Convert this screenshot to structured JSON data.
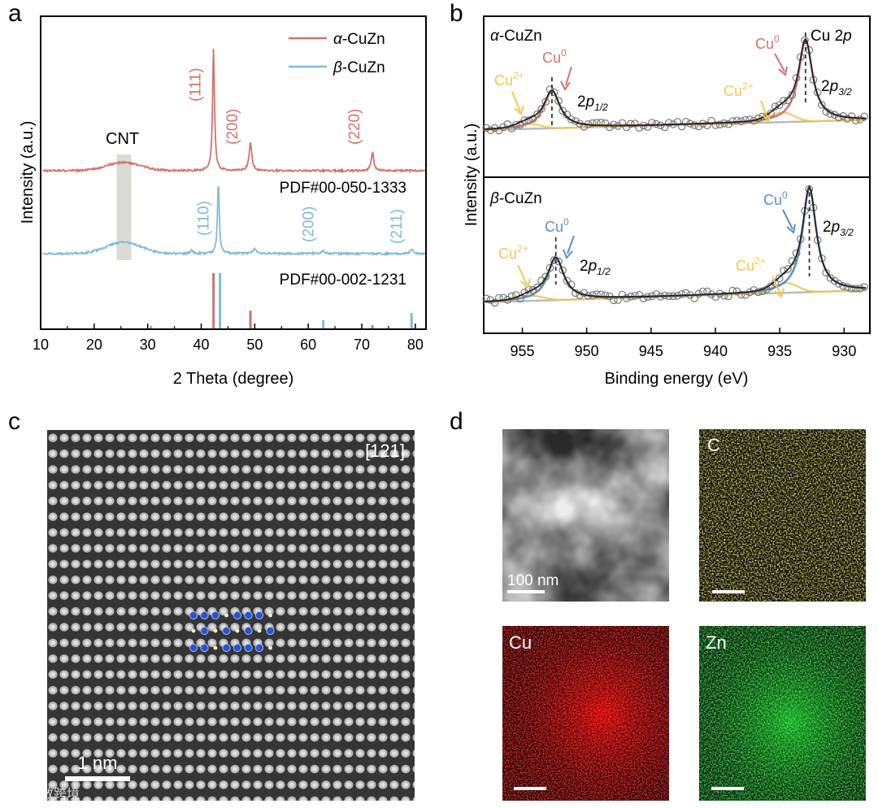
{
  "panels": {
    "a": "a",
    "b": "b",
    "c": "c",
    "d": "d"
  },
  "colors": {
    "alpha": "#d0736e",
    "beta": "#7fbcd8",
    "cu0_blue": "#5b8fc4",
    "cu2": "#f0c850",
    "fit_black": "#222222",
    "background_gray": "#bbbbbb"
  },
  "xrd": {
    "legend": [
      {
        "prefix": "α",
        "suffix": "-CuZn"
      },
      {
        "prefix": "β",
        "suffix": "-CuZn"
      }
    ],
    "cnt_label": "CNT",
    "alpha_pdf": "PDF#00-050-1333",
    "beta_pdf": "PDF#00-002-1231",
    "alpha_peaks": [
      {
        "label": "(111)",
        "theta": 42.3
      },
      {
        "label": "(200)",
        "theta": 49.2
      },
      {
        "label": "(220)",
        "theta": 72.0
      }
    ],
    "beta_peaks": [
      {
        "label": "(110)",
        "theta": 43.2
      },
      {
        "label": "(200)",
        "theta": 62.8
      },
      {
        "label": "(211)",
        "theta": 79.3
      }
    ],
    "alpha_ref_sticks": [
      {
        "theta": 42.3,
        "rel": 1.0
      },
      {
        "theta": 49.2,
        "rel": 0.32
      },
      {
        "theta": 72.0,
        "rel": 0.06
      }
    ],
    "beta_ref_sticks": [
      {
        "theta": 30.6,
        "rel": 0.05
      },
      {
        "theta": 43.2,
        "rel": 1.0
      },
      {
        "theta": 62.8,
        "rel": 0.15
      },
      {
        "theta": 79.3,
        "rel": 0.28
      }
    ]
  },
  "xps": {
    "alpha_title": {
      "prefix": "α",
      "suffix": "-CuZn"
    },
    "beta_title": {
      "prefix": "β",
      "suffix": "-CuZn"
    },
    "cu2p_label": "Cu 2",
    "cu2p_italic": "p",
    "cu0": "Cu",
    "cu0_sup": "0",
    "cu2": "Cu",
    "cu2_sup": "2+",
    "p12": {
      "pre": "2",
      "p": "p",
      "sub": "1/2"
    },
    "p32": {
      "pre": "2",
      "p": "p",
      "sub": "3/2"
    },
    "alpha_peaks_ev": {
      "p12": 952.7,
      "p32": 933.0
    },
    "beta_peaks_ev": {
      "p12": 952.4,
      "p32": 932.7
    }
  },
  "hrtem": {
    "zone_axis": "[121]",
    "scalebar": "1 nm"
  },
  "eds": {
    "haadf_scalebar": "100 nm",
    "map_c": "C",
    "map_cu": "Cu",
    "map_zn": "Zn"
  },
  "watermark": "大数跨境",
  "chart_data": [
    {
      "type": "line",
      "title": "",
      "xlabel": "2 Theta (degree)",
      "ylabel": "Intensity (a.u.)",
      "xlim": [
        10,
        82
      ],
      "xticks": [
        10,
        20,
        30,
        40,
        50,
        60,
        70,
        80
      ],
      "series": [
        {
          "name": "α-CuZn",
          "peaks_theta": [
            25.5,
            42.3,
            49.2,
            72.0
          ]
        },
        {
          "name": "β-CuZn",
          "peaks_theta": [
            25.5,
            43.2,
            50.0,
            62.8,
            79.3
          ]
        }
      ]
    },
    {
      "type": "scatter",
      "title": "Cu 2p",
      "xlabel": "Binding energy (eV)",
      "ylabel": "Intensity (a.u.)",
      "xlim": [
        958,
        928
      ],
      "xticks": [
        955,
        950,
        945,
        940,
        935,
        930
      ],
      "series": [
        {
          "name": "α-CuZn",
          "peaks_ev": [
            952.7,
            933.0
          ]
        },
        {
          "name": "β-CuZn",
          "peaks_ev": [
            952.4,
            932.7
          ]
        }
      ]
    }
  ]
}
